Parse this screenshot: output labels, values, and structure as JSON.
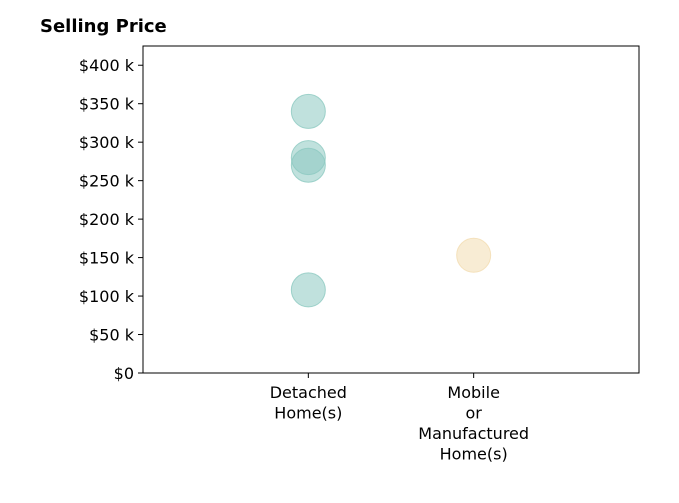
{
  "chart_data": {
    "type": "scatter",
    "title": "Selling Price",
    "xlabel": "",
    "ylabel": "",
    "categories": [
      [
        "Detached",
        "Home(s)"
      ],
      [
        "Mobile",
        "or",
        "Manufactured",
        "Home(s)"
      ]
    ],
    "xlim": [
      -1,
      2
    ],
    "ylim": [
      0,
      425000
    ],
    "y_ticks": [
      {
        "value": 0,
        "label": "$0"
      },
      {
        "value": 50000,
        "label": "$50 k"
      },
      {
        "value": 100000,
        "label": "$100 k"
      },
      {
        "value": 150000,
        "label": "$150 k"
      },
      {
        "value": 200000,
        "label": "$200 k"
      },
      {
        "value": 250000,
        "label": "$250 k"
      },
      {
        "value": 300000,
        "label": "$300 k"
      },
      {
        "value": 350000,
        "label": "$350 k"
      },
      {
        "value": 400000,
        "label": "$400 k"
      }
    ],
    "grid": false,
    "points": [
      {
        "category": 0,
        "y": 340000,
        "color": "#8cc9c1"
      },
      {
        "category": 0,
        "y": 280000,
        "color": "#8cc9c1"
      },
      {
        "category": 0,
        "y": 270000,
        "color": "#8cc9c1"
      },
      {
        "category": 0,
        "y": 108000,
        "color": "#8cc9c1"
      },
      {
        "category": 1,
        "y": 153000,
        "color": "#f3dcb0"
      }
    ]
  }
}
